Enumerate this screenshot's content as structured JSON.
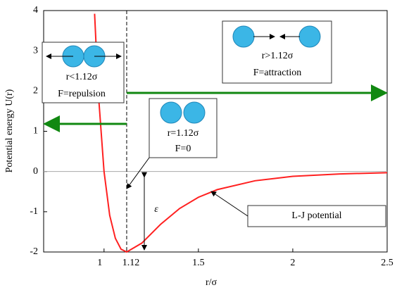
{
  "chart_data": {
    "type": "line",
    "x_label": "r/σ",
    "y_label": "Potential energy U(r)",
    "x": [
      0.95,
      0.97,
      1.0,
      1.03,
      1.06,
      1.09,
      1.12,
      1.2,
      1.3,
      1.4,
      1.5,
      1.6,
      1.8,
      2.0,
      2.25,
      2.5
    ],
    "series": [
      {
        "name": "L-J potential",
        "color": "#ff2020",
        "values": [
          3.92,
          1.93,
          0,
          -1.09,
          -1.66,
          -1.93,
          -2.0,
          -1.78,
          -1.31,
          -0.92,
          -0.64,
          -0.45,
          -0.23,
          -0.12,
          -0.06,
          -0.03
        ]
      }
    ],
    "xlim": [
      0.68,
      2.5
    ],
    "ylim": [
      -2,
      4
    ],
    "xticks": [
      1,
      1.12,
      1.5,
      2,
      2.5
    ],
    "yticks": [
      -2,
      -1,
      0,
      1,
      2,
      3,
      4
    ],
    "annotations": [
      "r<1.12σ",
      "F=repulsion",
      "r>1.12σ",
      "F=attraction",
      "r=1.12σ",
      "F=0",
      "ε",
      "L-J potential"
    ]
  }
}
